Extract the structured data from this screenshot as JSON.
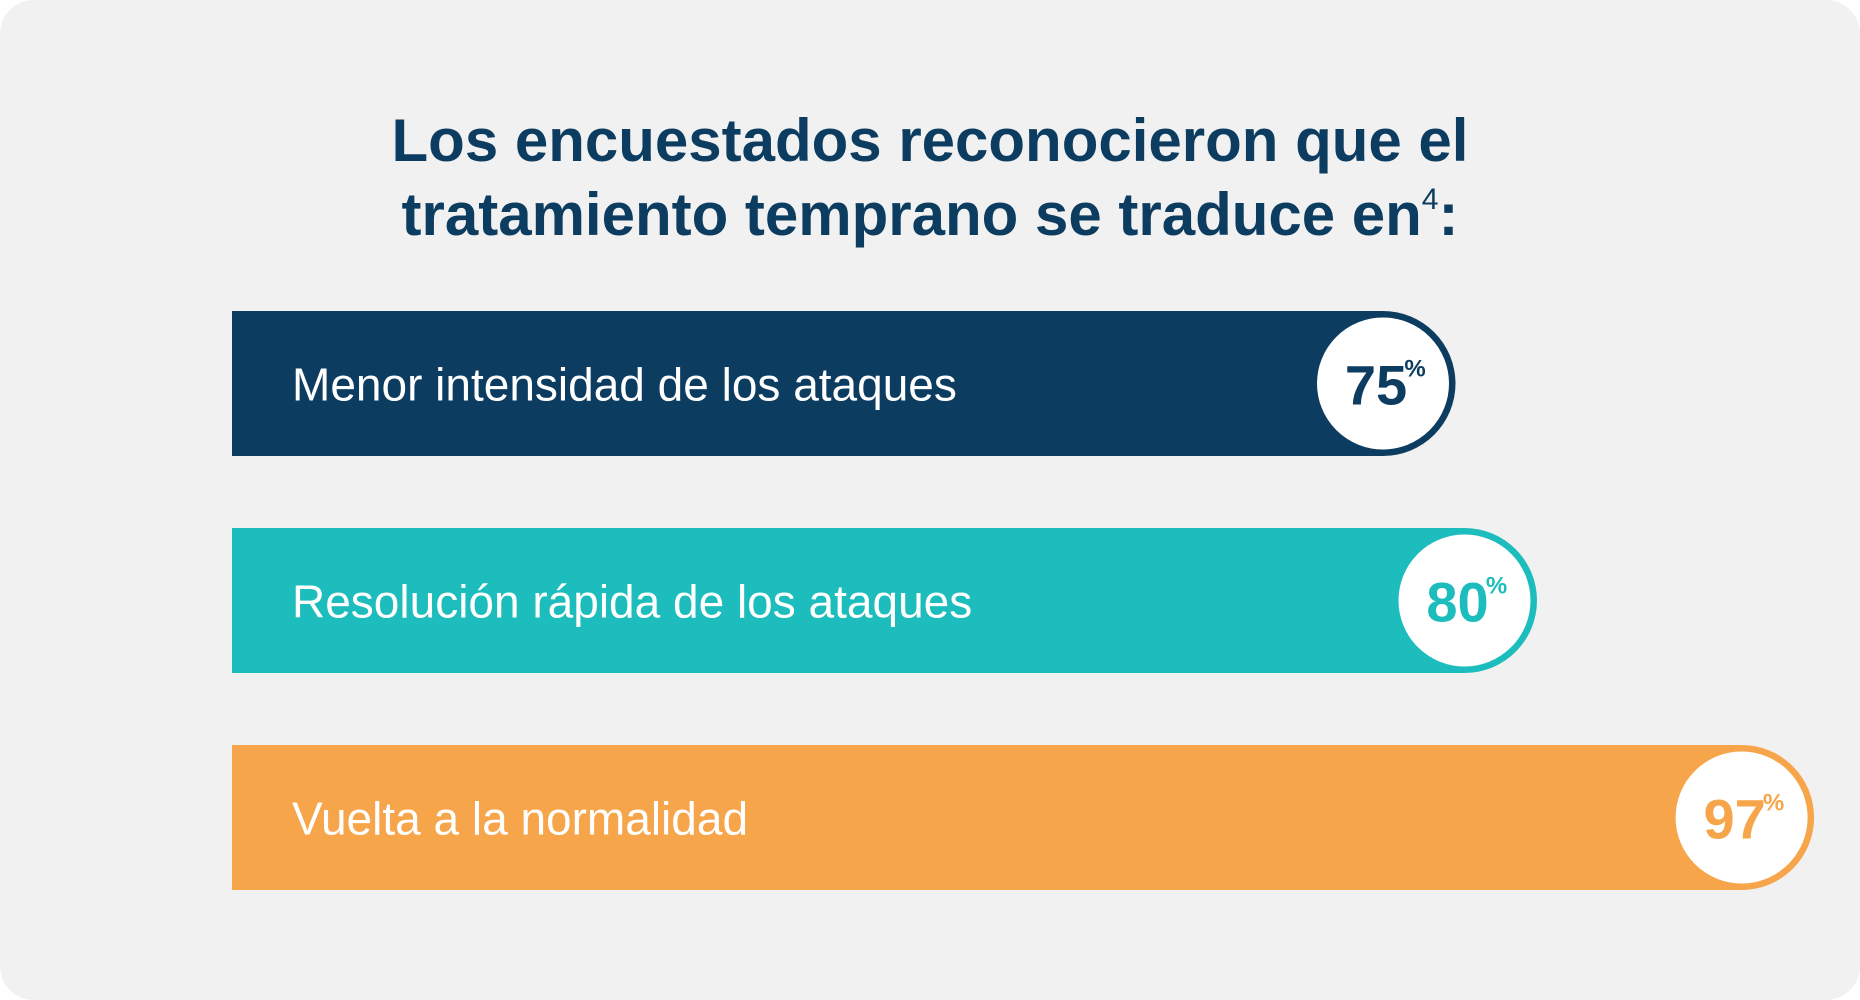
{
  "chart_data": {
    "type": "bar",
    "orientation": "horizontal",
    "title_line1": "Los encuestados reconocieron que el",
    "title_line2": "tratamiento temprano se traduce en",
    "title_superscript": "4",
    "title_suffix": ":",
    "xlim": [
      0,
      100
    ],
    "unit": "%",
    "categories": [
      "Menor intensidad de los ataques",
      "Resolución rápida de los ataques",
      "Vuelta a la normalidad"
    ],
    "values": [
      75,
      80,
      97
    ],
    "colors": [
      "#0d3c61",
      "#1cbdbc",
      "#f7a54b"
    ]
  }
}
